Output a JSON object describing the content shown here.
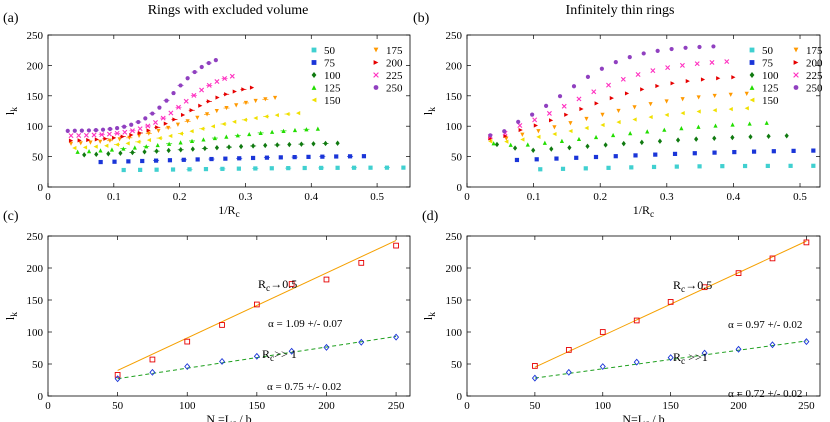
{
  "figure": {
    "titles": [
      "Rings with excluded volume",
      "Infinitely thin rings"
    ],
    "panel_labels": [
      "(a)",
      "(b)",
      "(c)",
      "(d)"
    ],
    "colors": {
      "50": "#40d0d0",
      "75": "#1a35d8",
      "100": "#107a10",
      "125": "#22dd00",
      "150": "#f0e000",
      "175": "#ff9900",
      "200": "#e60000",
      "225": "#ff30c0",
      "250": "#9040c0",
      "fit_orange": "#f5a000",
      "fit_green": "#1fa01f",
      "red_text": "#e01010",
      "blue_text": "#1a1ad0"
    }
  },
  "chart_data": [
    {
      "id": "a",
      "type": "scatter",
      "title": "Rings with excluded volume",
      "panel": "(a)",
      "xlabel": "1/R",
      "xlabel_sub": "c",
      "ylabel": "l",
      "ylabel_sub": "k",
      "xlim": [
        0,
        0.55
      ],
      "ylim": [
        0,
        250
      ],
      "xticks": [
        0,
        0.1,
        0.2,
        0.3,
        0.4,
        0.5
      ],
      "xtick_labels": [
        "0",
        "0.1",
        "0.2",
        "0.3",
        "0.4",
        "0.5"
      ],
      "yticks": [
        0,
        50,
        100,
        150,
        200,
        250
      ],
      "ytick_labels": [
        "0",
        "50",
        "100",
        "150",
        "200",
        "250"
      ],
      "legend": [
        "50",
        "75",
        "100",
        "125",
        "150",
        "175",
        "200",
        "225",
        "250"
      ],
      "series": [
        {
          "name": "50",
          "marker": "square",
          "x0": 0.115,
          "x1": 0.54,
          "n": 18,
          "ylow": 27,
          "yhigh": 32,
          "b": 0.3,
          "w": 0.2
        },
        {
          "name": "75",
          "marker": "square",
          "x0": 0.08,
          "x1": 0.48,
          "n": 20,
          "ylow": 37,
          "yhigh": 52,
          "b": 0.3,
          "w": 0.3
        },
        {
          "name": "100",
          "marker": "diamond",
          "x0": 0.055,
          "x1": 0.44,
          "n": 22,
          "ylow": 46,
          "yhigh": 75,
          "b": 0.35,
          "w": 0.3
        },
        {
          "name": "125",
          "marker": "triangle-up",
          "x0": 0.045,
          "x1": 0.41,
          "n": 22,
          "ylow": 52,
          "yhigh": 102,
          "b": 0.5,
          "w": 0.25
        },
        {
          "name": "150",
          "marker": "triangle-left",
          "x0": 0.04,
          "x1": 0.38,
          "n": 22,
          "ylow": 60,
          "yhigh": 128,
          "b": 0.55,
          "w": 0.2
        },
        {
          "name": "175",
          "marker": "triangle-down",
          "x0": 0.035,
          "x1": 0.345,
          "n": 22,
          "ylow": 68,
          "yhigh": 155,
          "b": 0.6,
          "w": 0.18
        },
        {
          "name": "200",
          "marker": "triangle-right",
          "x0": 0.035,
          "x1": 0.31,
          "n": 22,
          "ylow": 75,
          "yhigh": 172,
          "b": 0.65,
          "w": 0.15
        },
        {
          "name": "225",
          "marker": "x",
          "x0": 0.035,
          "x1": 0.28,
          "n": 22,
          "ylow": 84,
          "yhigh": 192,
          "b": 0.7,
          "w": 0.13
        },
        {
          "name": "250",
          "marker": "circle",
          "x0": 0.03,
          "x1": 0.255,
          "n": 22,
          "ylow": 92,
          "yhigh": 220,
          "b": 0.72,
          "w": 0.12
        }
      ]
    },
    {
      "id": "b",
      "type": "scatter",
      "title": "Infinitely thin rings",
      "panel": "(b)",
      "xlabel": "1/R",
      "xlabel_sub": "c",
      "ylabel": "l",
      "ylabel_sub": "k",
      "xlim": [
        0,
        0.53
      ],
      "ylim": [
        0,
        250
      ],
      "xticks": [
        0,
        0.1,
        0.2,
        0.3,
        0.4,
        0.5
      ],
      "xtick_labels": [
        "0",
        "0.1",
        "0.2",
        "0.3",
        "0.4",
        "0.5"
      ],
      "yticks": [
        0,
        50,
        100,
        150,
        200,
        250
      ],
      "ytick_labels": [
        "0",
        "50",
        "100",
        "150",
        "200",
        "250"
      ],
      "legend": [
        "50",
        "75",
        "100",
        "125",
        "150",
        "175",
        "200",
        "225",
        "250"
      ],
      "series": [
        {
          "name": "50",
          "marker": "square",
          "x0": 0.11,
          "x1": 0.52,
          "n": 13,
          "ylow": 27,
          "yhigh": 35,
          "b": 0.2,
          "w": 0.2,
          "start": 0
        },
        {
          "name": "75",
          "marker": "square",
          "x0": 0.075,
          "x1": 0.52,
          "n": 16,
          "ylow": 38,
          "yhigh": 62,
          "b": 0.3,
          "w": 0.3,
          "start": 0
        },
        {
          "name": "100",
          "marker": "diamond",
          "x0": 0.045,
          "x1": 0.48,
          "n": 17,
          "ylow": 45,
          "yhigh": 88,
          "b": 0.3,
          "w": 0.3,
          "start": 70
        },
        {
          "name": "125",
          "marker": "triangle-up",
          "x0": 0.04,
          "x1": 0.45,
          "n": 17,
          "ylow": 50,
          "yhigh": 112,
          "b": 0.35,
          "w": 0.3,
          "start": 72
        },
        {
          "name": "150",
          "marker": "triangle-left",
          "x0": 0.035,
          "x1": 0.42,
          "n": 17,
          "ylow": 55,
          "yhigh": 135,
          "b": 0.35,
          "w": 0.25,
          "start": 75
        },
        {
          "name": "175",
          "marker": "triangle-down",
          "x0": 0.035,
          "x1": 0.42,
          "n": 17,
          "ylow": 60,
          "yhigh": 158,
          "b": 0.35,
          "w": 0.22,
          "start": 78
        },
        {
          "name": "200",
          "marker": "triangle-right",
          "x0": 0.035,
          "x1": 0.4,
          "n": 17,
          "ylow": 64,
          "yhigh": 185,
          "b": 0.35,
          "w": 0.2,
          "start": 80
        },
        {
          "name": "225",
          "marker": "x",
          "x0": 0.035,
          "x1": 0.39,
          "n": 17,
          "ylow": 70,
          "yhigh": 210,
          "b": 0.35,
          "w": 0.18,
          "start": 83
        },
        {
          "name": "250",
          "marker": "circle",
          "x0": 0.035,
          "x1": 0.37,
          "n": 17,
          "ylow": 75,
          "yhigh": 233,
          "b": 0.33,
          "w": 0.15,
          "start": 85
        }
      ]
    },
    {
      "id": "c",
      "type": "line",
      "panel": "(c)",
      "xlabel": "N =L",
      "xlabel_sub": "c",
      "xlabel_tail": " / b",
      "ylabel": "l",
      "ylabel_sub": "k",
      "xlim": [
        0,
        260
      ],
      "ylim": [
        0,
        250
      ],
      "xticks": [
        0,
        50,
        100,
        150,
        200,
        250
      ],
      "xtick_labels": [
        "0",
        "50",
        "100",
        "150",
        "200",
        "250"
      ],
      "yticks": [
        0,
        50,
        100,
        150,
        200,
        250
      ],
      "ytick_labels": [
        "0",
        "50",
        "100",
        "150",
        "200",
        "250"
      ],
      "series": [
        {
          "name": "R_c -> 0.5",
          "marker": "square-open",
          "color": "#e60000",
          "x": [
            50,
            75,
            100,
            125,
            150,
            175,
            200,
            225,
            250
          ],
          "y": [
            33,
            57,
            85,
            111,
            143,
            175,
            182,
            208,
            235
          ],
          "fit": {
            "x": [
              50,
              250
            ],
            "y": [
              40,
              243
            ],
            "color": "#f5a000",
            "dash": false
          }
        },
        {
          "name": "R_c >> 1",
          "marker": "diamond-open",
          "color": "#1a35d8",
          "x": [
            50,
            75,
            100,
            125,
            150,
            175,
            200,
            225,
            250
          ],
          "y": [
            27,
            37,
            46,
            54,
            62,
            70,
            76,
            84,
            92
          ],
          "fit": {
            "x": [
              50,
              250
            ],
            "y": [
              27,
              93
            ],
            "color": "#1fa01f",
            "dash": true
          }
        }
      ],
      "annotations": {
        "red_label": "R",
        "red_label_sub": "c",
        "red_label_tail": "→0.5",
        "red_alpha": "α = 1.09 +/- 0.07",
        "blue_label": "R",
        "blue_label_sub": "c",
        "blue_label_tail": ">> 1",
        "blue_alpha": "α = 0.75 +/- 0.02"
      }
    },
    {
      "id": "d",
      "type": "line",
      "panel": "(d)",
      "xlabel": "N=L",
      "xlabel_sub": "c",
      "xlabel_tail": " / b",
      "ylabel": "l",
      "ylabel_sub": "k",
      "xlim": [
        0,
        260
      ],
      "ylim": [
        0,
        250
      ],
      "xticks": [
        0,
        50,
        100,
        150,
        200,
        250
      ],
      "xtick_labels": [
        "0",
        "50",
        "100",
        "150",
        "200",
        "250"
      ],
      "yticks": [
        0,
        50,
        100,
        150,
        200,
        250
      ],
      "ytick_labels": [
        "0",
        "50",
        "100",
        "150",
        "200",
        "250"
      ],
      "series": [
        {
          "name": "R_c -> 0.5",
          "marker": "square-open",
          "color": "#e60000",
          "x": [
            50,
            75,
            100,
            125,
            150,
            175,
            200,
            225,
            250
          ],
          "y": [
            47,
            72,
            100,
            118,
            147,
            170,
            192,
            215,
            240
          ],
          "fit": {
            "x": [
              50,
              250
            ],
            "y": [
              45,
              242
            ],
            "color": "#f5a000",
            "dash": false
          }
        },
        {
          "name": "R_c >> 1",
          "marker": "diamond-open",
          "color": "#1a35d8",
          "x": [
            50,
            75,
            100,
            125,
            150,
            175,
            200,
            225,
            250
          ],
          "y": [
            28,
            37,
            46,
            53,
            60,
            67,
            73,
            80,
            85
          ],
          "fit": {
            "x": [
              50,
              250
            ],
            "y": [
              28,
              86
            ],
            "color": "#1fa01f",
            "dash": true
          }
        }
      ],
      "annotations": {
        "red_label": "R",
        "red_label_sub": "c",
        "red_label_tail": "→0.5",
        "red_alpha": "α = 0.97 +/- 0.02",
        "blue_label": "R",
        "blue_label_sub": "c",
        "blue_label_tail": " >>1",
        "blue_alpha": "α = 0.72 +/- 0.02"
      }
    }
  ]
}
